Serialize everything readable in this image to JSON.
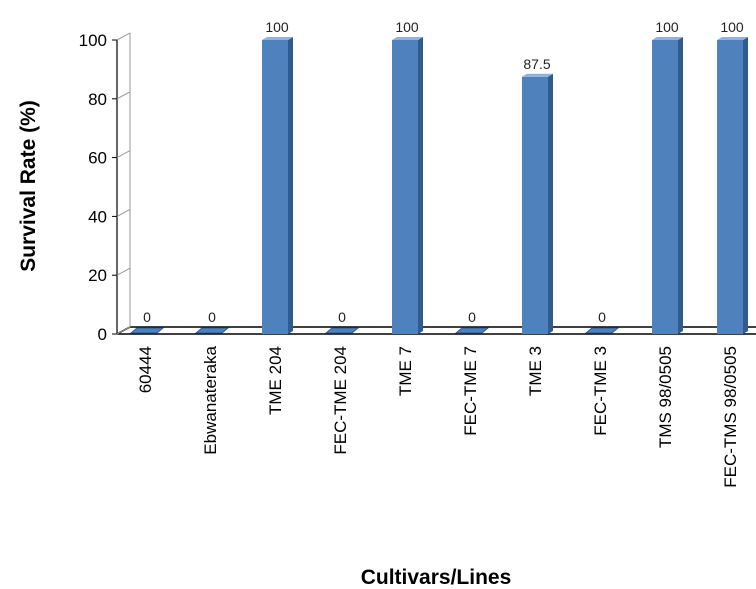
{
  "chart_data": {
    "type": "bar",
    "xlabel": "Cultivars/Lines",
    "ylabel": "Survival Rate (%)",
    "ylim": [
      0,
      100
    ],
    "yticks": [
      0,
      20,
      40,
      60,
      80,
      100
    ],
    "categories": [
      "60444",
      "Ebwanateraka",
      "TME 204",
      "FEC-TME 204",
      "TME 7",
      "FEC-TME 7",
      "TME 3",
      "FEC-TME 3",
      "TMS 98/0505",
      "FEC-TMS 98/0505"
    ],
    "values": [
      0,
      0,
      100,
      0,
      100,
      0,
      87.5,
      0,
      100,
      100
    ],
    "data_labels": [
      "0",
      "0",
      "100",
      "0",
      "100",
      "0",
      "87.5",
      "0",
      "100",
      "100"
    ],
    "grid": false,
    "legend": "none",
    "colors": {
      "bar_front": "#4f81bd",
      "bar_side": "#2f5b8f",
      "bar_top": "#8fb2de",
      "axis": "#000000"
    }
  }
}
